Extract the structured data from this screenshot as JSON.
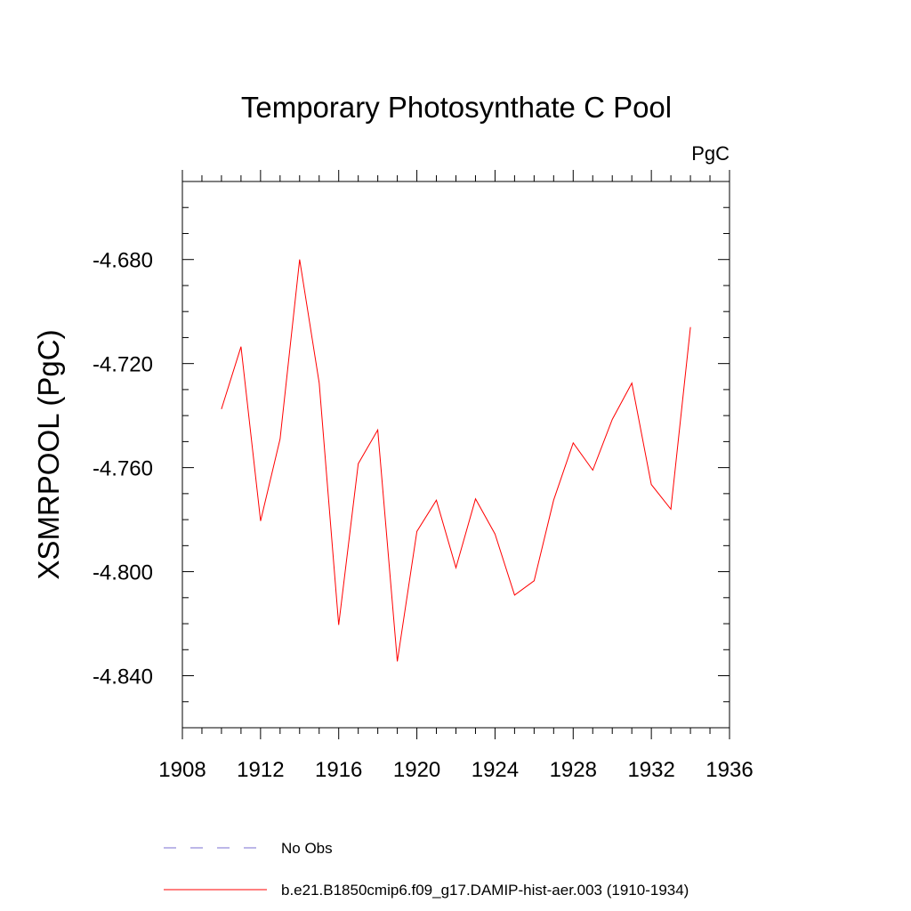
{
  "chart_data": {
    "type": "line",
    "title": "Temporary Photosynthate C Pool",
    "units_label": "PgC",
    "xlabel": "",
    "ylabel": "XSMRPOOL  (PgC)",
    "xlim": [
      1908,
      1936
    ],
    "ylim": [
      -4.86,
      -4.65
    ],
    "x_ticks": [
      1908,
      1912,
      1916,
      1920,
      1924,
      1928,
      1932,
      1936
    ],
    "x_tick_labels": [
      "1908",
      "1912",
      "1916",
      "1920",
      "1924",
      "1928",
      "1932",
      "1936"
    ],
    "y_ticks": [
      -4.68,
      -4.72,
      -4.76,
      -4.8,
      -4.84
    ],
    "y_tick_labels": [
      "-4.680",
      "-4.720",
      "-4.760",
      "-4.800",
      "-4.840"
    ],
    "grid": false,
    "legend_position": "bottom",
    "series": [
      {
        "name": "b.e21.B1850cmip6.f09_g17.DAMIP-hist-aer.003 (1910-1934)",
        "color": "#ff0000",
        "style": "solid",
        "x": [
          1910,
          1911,
          1912,
          1913,
          1914,
          1915,
          1916,
          1917,
          1918,
          1919,
          1920,
          1921,
          1922,
          1923,
          1924,
          1925,
          1926,
          1927,
          1928,
          1929,
          1930,
          1931,
          1932,
          1933,
          1934
        ],
        "y": [
          -4.7375,
          -4.7135,
          -4.7805,
          -4.749,
          -4.68,
          -4.7275,
          -4.8205,
          -4.7585,
          -4.7455,
          -4.8345,
          -4.7845,
          -4.7725,
          -4.7985,
          -4.772,
          -4.7855,
          -4.809,
          -4.8035,
          -4.7725,
          -4.7505,
          -4.761,
          -4.7415,
          -4.7275,
          -4.7665,
          -4.776,
          -4.706
        ]
      }
    ],
    "legend": [
      {
        "label": "No Obs",
        "color": "#7a6fd0",
        "style": "dashed"
      },
      {
        "label": "b.e21.B1850cmip6.f09_g17.DAMIP-hist-aer.003 (1910-1934)",
        "color": "#ff0000",
        "style": "solid"
      }
    ]
  }
}
